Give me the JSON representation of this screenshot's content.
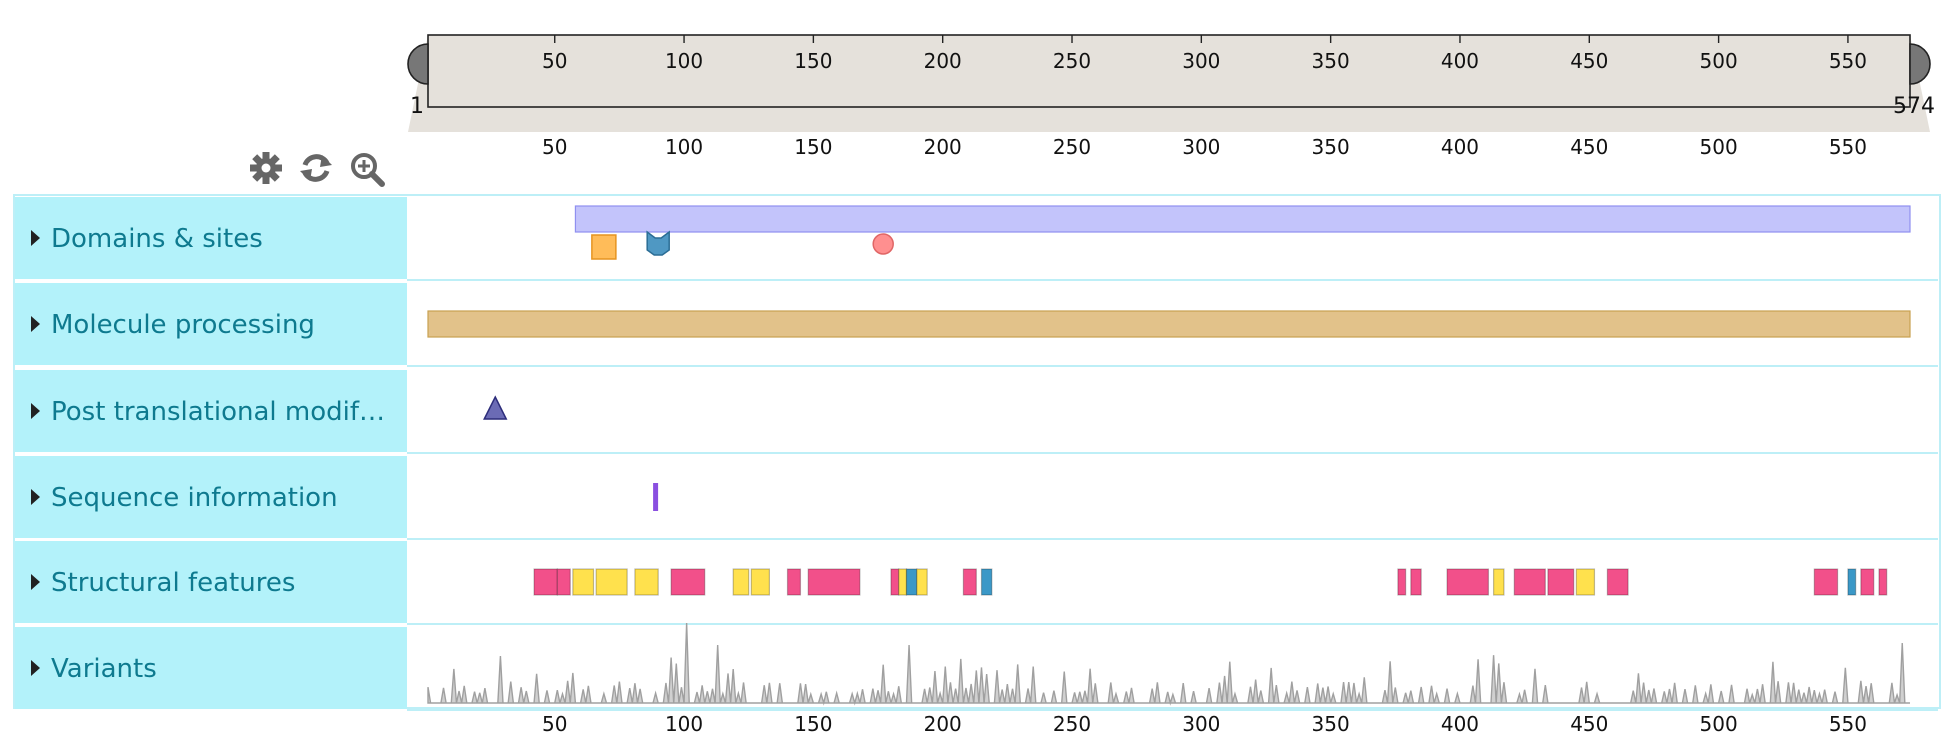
{
  "sequence": {
    "start": 1,
    "end": 574,
    "start_label": "1",
    "end_label": "574"
  },
  "ruler": {
    "ticks": [
      50,
      100,
      150,
      200,
      250,
      300,
      350,
      400,
      450,
      500,
      550
    ]
  },
  "toolbar": {
    "buttons": [
      {
        "icon": "gear-icon",
        "action": "settings"
      },
      {
        "icon": "refresh-icon",
        "action": "reset"
      },
      {
        "icon": "zoom-in-icon",
        "action": "zoom"
      }
    ]
  },
  "colors": {
    "label_bg": "#b3f2fa",
    "label_text": "#0e7a8f",
    "border": "#bdeff7",
    "navigator_bg": "#e5e1db",
    "domain": "#c3c4fb",
    "chain": "#e2c28a",
    "helix": "#f2508a",
    "strand": "#ffe14d",
    "turn": "#3b98c7",
    "variant": "#a0a0a0"
  },
  "tracks": [
    {
      "title": "Domains & sites",
      "features": [
        {
          "shape": "rect",
          "start": 58,
          "end": 574,
          "color": "#c3c4fb",
          "stroke": "#8f90f0",
          "row": 0
        },
        {
          "shape": "square",
          "pos": 69,
          "color": "#ffbc59",
          "stroke": "#e69420",
          "row": 1
        },
        {
          "shape": "chevron",
          "pos": 90,
          "color": "#4f98c3",
          "stroke": "#2b6d95",
          "row": 1
        },
        {
          "shape": "circle",
          "pos": 177,
          "color": "#ff8f8f",
          "stroke": "#e06666",
          "row": 1
        }
      ]
    },
    {
      "title": "Molecule processing",
      "features": [
        {
          "shape": "rect",
          "start": 1,
          "end": 574,
          "color": "#e2c28a",
          "stroke": "#c9a050",
          "row": 0
        }
      ]
    },
    {
      "title": "Post translational modif…",
      "features": [
        {
          "shape": "triangle",
          "pos": 27,
          "color": "#6b6bb5",
          "stroke": "#2c2c7a",
          "row": 0
        }
      ]
    },
    {
      "title": "Sequence information",
      "features": [
        {
          "shape": "bar",
          "pos": 89,
          "color": "#8a4fe0",
          "row": 0
        }
      ]
    },
    {
      "title": "Structural features",
      "features": [
        {
          "shape": "rect",
          "start": 42,
          "end": 51,
          "color": "#f2508a",
          "row": 0
        },
        {
          "shape": "rect",
          "start": 51,
          "end": 56,
          "color": "#f2508a",
          "row": 0
        },
        {
          "shape": "rect",
          "start": 57,
          "end": 65,
          "color": "#ffe14d",
          "row": 0
        },
        {
          "shape": "rect",
          "start": 66,
          "end": 78,
          "color": "#ffe14d",
          "row": 0
        },
        {
          "shape": "rect",
          "start": 81,
          "end": 90,
          "color": "#ffe14d",
          "row": 0
        },
        {
          "shape": "rect",
          "start": 95,
          "end": 108,
          "color": "#f2508a",
          "row": 0
        },
        {
          "shape": "rect",
          "start": 119,
          "end": 125,
          "color": "#ffe14d",
          "row": 0
        },
        {
          "shape": "rect",
          "start": 126,
          "end": 133,
          "color": "#ffe14d",
          "row": 0
        },
        {
          "shape": "rect",
          "start": 140,
          "end": 145,
          "color": "#f2508a",
          "row": 0
        },
        {
          "shape": "rect",
          "start": 148,
          "end": 168,
          "color": "#f2508a",
          "row": 0
        },
        {
          "shape": "rect",
          "start": 180,
          "end": 183,
          "color": "#f2508a",
          "row": 0
        },
        {
          "shape": "rect",
          "start": 183,
          "end": 186,
          "color": "#ffe14d",
          "row": 0
        },
        {
          "shape": "rect",
          "start": 186,
          "end": 190,
          "color": "#3b98c7",
          "row": 0
        },
        {
          "shape": "rect",
          "start": 190,
          "end": 194,
          "color": "#ffe14d",
          "row": 0
        },
        {
          "shape": "rect",
          "start": 208,
          "end": 213,
          "color": "#f2508a",
          "row": 0
        },
        {
          "shape": "rect",
          "start": 215,
          "end": 219,
          "color": "#3b98c7",
          "row": 0
        },
        {
          "shape": "rect",
          "start": 376,
          "end": 379,
          "color": "#f2508a",
          "row": 0
        },
        {
          "shape": "rect",
          "start": 381,
          "end": 385,
          "color": "#f2508a",
          "row": 0
        },
        {
          "shape": "rect",
          "start": 395,
          "end": 411,
          "color": "#f2508a",
          "row": 0
        },
        {
          "shape": "rect",
          "start": 413,
          "end": 417,
          "color": "#ffe14d",
          "row": 0
        },
        {
          "shape": "rect",
          "start": 421,
          "end": 433,
          "color": "#f2508a",
          "row": 0
        },
        {
          "shape": "rect",
          "start": 434,
          "end": 444,
          "color": "#f2508a",
          "row": 0
        },
        {
          "shape": "rect",
          "start": 445,
          "end": 452,
          "color": "#ffe14d",
          "row": 0
        },
        {
          "shape": "rect",
          "start": 457,
          "end": 465,
          "color": "#f2508a",
          "row": 0
        },
        {
          "shape": "rect",
          "start": 537,
          "end": 546,
          "color": "#f2508a",
          "row": 0
        },
        {
          "shape": "rect",
          "start": 550,
          "end": 553,
          "color": "#3b98c7",
          "row": 0
        },
        {
          "shape": "rect",
          "start": 555,
          "end": 560,
          "color": "#f2508a",
          "row": 0
        },
        {
          "shape": "rect",
          "start": 562,
          "end": 565,
          "color": "#f2508a",
          "row": 0
        }
      ]
    },
    {
      "title": "Variants",
      "features": []
    }
  ]
}
